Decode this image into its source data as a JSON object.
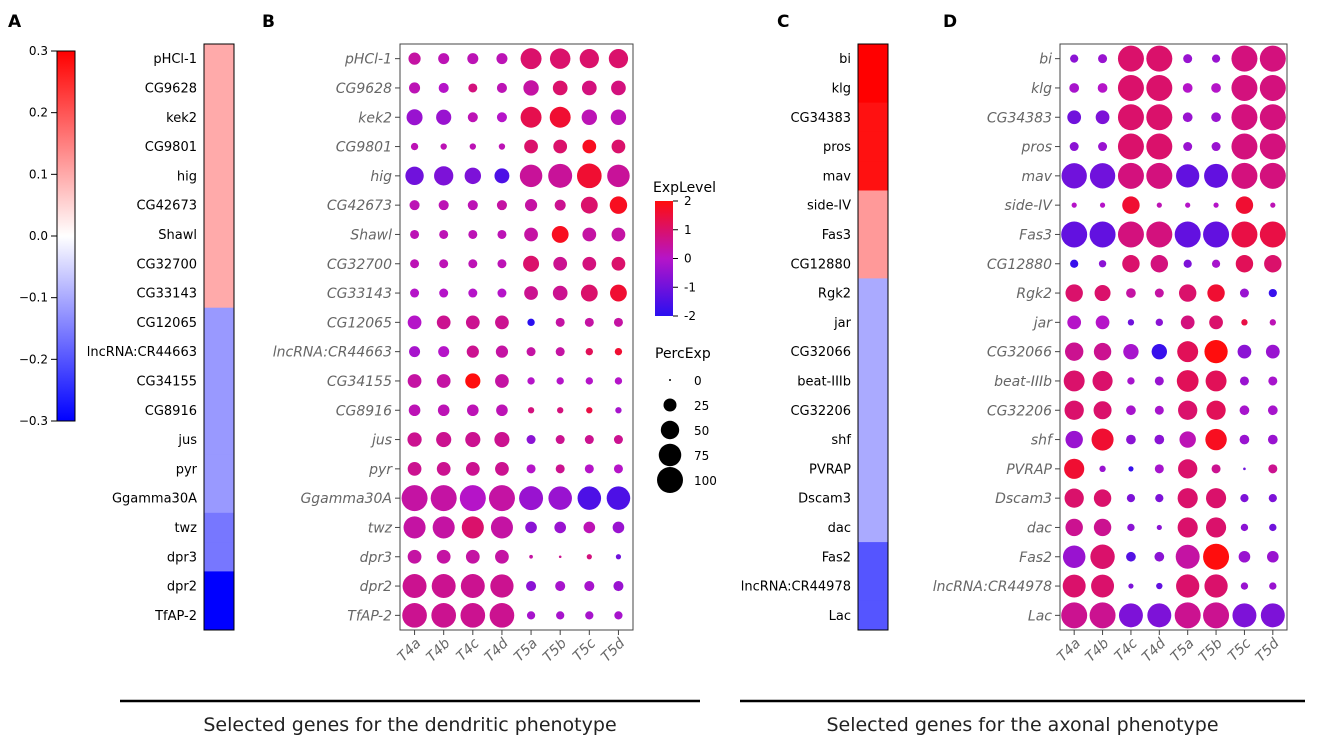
{
  "panel_labels": [
    "A",
    "B",
    "C",
    "D"
  ],
  "colors": {
    "dot_low": "#2a0ff0",
    "dot_mid": "#b514c8",
    "dot_high": "#ff0d0d",
    "axis": "#444444",
    "gene_text": "#666666",
    "black": "#000000"
  },
  "captions": {
    "dendritic": "Selected genes for the dendritic phenotype",
    "axonal": "Selected genes for the axonal phenotype"
  },
  "chart_data": [
    {
      "id": "A",
      "type": "heatmap",
      "title": "",
      "colorbar": {
        "min": -0.3,
        "max": 0.3,
        "ticks": [
          "0.3",
          "0.2",
          "0.1",
          "0.0",
          "−0.1",
          "−0.2",
          "−0.3"
        ],
        "tick_values": [
          0.3,
          0.2,
          0.1,
          0.0,
          -0.1,
          -0.2,
          -0.3
        ],
        "colors": [
          "#0000ff",
          "#ffffff",
          "#ff0000"
        ]
      },
      "rows": [
        "pHCl-1",
        "CG9628",
        "kek2",
        "CG9801",
        "hig",
        "CG42673",
        "Shawl",
        "CG32700",
        "CG33143",
        "CG12065",
        "lncRNA:CR44663",
        "CG34155",
        "CG8916",
        "jus",
        "pyr",
        "Ggamma30A",
        "twz",
        "dpr3",
        "dpr2",
        "TfAP-2"
      ],
      "values": [
        0.1,
        0.1,
        0.1,
        0.1,
        0.1,
        0.1,
        0.1,
        0.1,
        0.1,
        -0.12,
        -0.12,
        -0.12,
        -0.12,
        -0.12,
        -0.12,
        -0.12,
        -0.16,
        -0.16,
        -0.3,
        -0.3
      ]
    },
    {
      "id": "B",
      "type": "scatter",
      "subtype": "dotplot",
      "xlabels": [
        "T4a",
        "T4b",
        "T4c",
        "T4d",
        "T5a",
        "T5b",
        "T5c",
        "T5d"
      ],
      "ylabels": [
        "pHCl-1",
        "CG9628",
        "kek2",
        "CG9801",
        "hig",
        "CG42673",
        "Shawl",
        "CG32700",
        "CG33143",
        "CG12065",
        "lncRNA:CR44663",
        "CG34155",
        "CG8916",
        "jus",
        "pyr",
        "Ggamma30A",
        "twz",
        "dpr3",
        "dpr2",
        "TfAP-2"
      ],
      "perc_exp": [
        [
          22,
          18,
          18,
          18,
          65,
          62,
          55,
          55
        ],
        [
          18,
          15,
          12,
          15,
          35,
          32,
          32,
          32
        ],
        [
          38,
          34,
          15,
          15,
          65,
          65,
          35,
          35
        ],
        [
          8,
          6,
          6,
          6,
          28,
          28,
          28,
          28
        ],
        [
          50,
          55,
          40,
          33,
          75,
          85,
          90,
          75
        ],
        [
          15,
          15,
          15,
          15,
          22,
          18,
          42,
          45
        ],
        [
          12,
          12,
          12,
          12,
          28,
          42,
          28,
          28
        ],
        [
          12,
          12,
          12,
          12,
          38,
          28,
          28,
          28
        ],
        [
          12,
          12,
          12,
          12,
          28,
          32,
          42,
          42
        ],
        [
          28,
          28,
          28,
          28,
          8,
          12,
          12,
          12
        ],
        [
          18,
          18,
          22,
          22,
          12,
          12,
          8,
          8
        ],
        [
          28,
          28,
          34,
          28,
          8,
          8,
          8,
          8
        ],
        [
          20,
          20,
          20,
          20,
          6,
          6,
          6,
          6
        ],
        [
          30,
          34,
          34,
          34,
          12,
          12,
          12,
          12
        ],
        [
          28,
          28,
          28,
          28,
          12,
          12,
          12,
          12
        ],
        [
          100,
          100,
          100,
          100,
          85,
          82,
          82,
          82
        ],
        [
          72,
          72,
          72,
          72,
          20,
          20,
          20,
          20
        ],
        [
          28,
          28,
          28,
          28,
          2,
          1,
          4,
          4
        ],
        [
          85,
          85,
          85,
          80,
          15,
          15,
          15,
          15
        ],
        [
          90,
          90,
          90,
          90,
          10,
          10,
          10,
          10
        ]
      ],
      "exp_level": [
        [
          0.4,
          0.2,
          0.2,
          0.2,
          1.0,
          1.0,
          1.0,
          1.0
        ],
        [
          0.2,
          0.0,
          0.8,
          0.2,
          0.4,
          1.0,
          0.8,
          0.8
        ],
        [
          -0.4,
          -0.4,
          0.2,
          0.0,
          1.3,
          1.6,
          0.2,
          0.2
        ],
        [
          0.2,
          0.2,
          0.2,
          0.2,
          1.0,
          1.0,
          1.8,
          1.0
        ],
        [
          -1.0,
          -0.8,
          -0.8,
          -1.5,
          0.5,
          0.5,
          1.6,
          0.5
        ],
        [
          0.2,
          0.2,
          0.2,
          0.4,
          0.4,
          0.6,
          1.0,
          1.8
        ],
        [
          0.2,
          0.2,
          0.2,
          0.2,
          0.4,
          1.8,
          0.4,
          0.4
        ],
        [
          0.2,
          0.2,
          0.2,
          0.2,
          1.0,
          0.6,
          0.8,
          1.0
        ],
        [
          0.0,
          0.0,
          0.0,
          0.0,
          0.6,
          0.6,
          1.0,
          1.6
        ],
        [
          0.0,
          0.6,
          0.6,
          0.6,
          -2.0,
          0.4,
          0.4,
          0.4
        ],
        [
          -0.2,
          0.0,
          0.6,
          0.4,
          0.4,
          0.4,
          1.2,
          1.6
        ],
        [
          0.4,
          0.4,
          2.0,
          0.4,
          0.0,
          0.0,
          0.0,
          0.0
        ],
        [
          0.2,
          0.2,
          0.2,
          0.2,
          0.8,
          0.8,
          1.4,
          -0.2
        ],
        [
          0.6,
          0.6,
          0.6,
          0.6,
          -0.6,
          0.6,
          0.6,
          0.6
        ],
        [
          0.6,
          0.6,
          0.6,
          0.6,
          0.0,
          0.6,
          0.0,
          0.0
        ],
        [
          0.4,
          0.4,
          0.0,
          0.4,
          -0.4,
          -0.4,
          -1.5,
          -1.5
        ],
        [
          0.4,
          0.4,
          1.0,
          0.4,
          -0.6,
          -0.4,
          0.2,
          -0.4
        ],
        [
          0.4,
          0.4,
          0.4,
          0.4,
          0.4,
          0.6,
          0.8,
          -1.0
        ],
        [
          0.6,
          0.6,
          0.6,
          0.6,
          -0.6,
          -0.2,
          -0.2,
          -0.4
        ],
        [
          0.6,
          0.6,
          0.6,
          0.6,
          -0.2,
          -0.2,
          -0.2,
          -0.2
        ]
      ],
      "legend": {
        "exp_title": "ExpLevel",
        "exp_ticks": [
          "2",
          "1",
          "0",
          "-1",
          "-2"
        ],
        "exp_tick_values": [
          2,
          1,
          0,
          -1,
          -2
        ],
        "perc_title": "PercExp",
        "perc_ticks": [
          "0",
          "25",
          "50",
          "75",
          "100"
        ],
        "perc_tick_values": [
          0,
          25,
          50,
          75,
          100
        ]
      }
    },
    {
      "id": "C",
      "type": "heatmap",
      "rows": [
        "bi",
        "klg",
        "CG34383",
        "pros",
        "mav",
        "side-IV",
        "Fas3",
        "CG12880",
        "Rgk2",
        "jar",
        "CG32066",
        "beat-IIIb",
        "CG32206",
        "shf",
        "PVRAP",
        "Dscam3",
        "dac",
        "Fas2",
        "lncRNA:CR44978",
        "Lac"
      ],
      "values": [
        0.3,
        0.3,
        0.28,
        0.28,
        0.28,
        0.12,
        0.12,
        0.12,
        -0.1,
        -0.1,
        -0.1,
        -0.1,
        -0.1,
        -0.1,
        -0.1,
        -0.1,
        -0.1,
        -0.2,
        -0.2,
        -0.2
      ]
    },
    {
      "id": "D",
      "type": "scatter",
      "subtype": "dotplot",
      "xlabels": [
        "T4a",
        "T4b",
        "T4c",
        "T4d",
        "T5a",
        "T5b",
        "T5c",
        "T5d"
      ],
      "ylabels": [
        "bi",
        "klg",
        "CG34383",
        "pros",
        "mav",
        "side-IV",
        "Fas3",
        "CG12880",
        "Rgk2",
        "jar",
        "CG32066",
        "beat-IIIb",
        "CG32206",
        "shf",
        "PVRAP",
        "Dscam3",
        "dac",
        "Fas2",
        "lncRNA:CR44978",
        "Lac"
      ],
      "perc_exp": [
        [
          10,
          12,
          100,
          100,
          12,
          10,
          100,
          100
        ],
        [
          14,
          14,
          100,
          100,
          14,
          14,
          100,
          100
        ],
        [
          28,
          28,
          100,
          100,
          14,
          14,
          100,
          100
        ],
        [
          12,
          12,
          100,
          100,
          12,
          12,
          100,
          100
        ],
        [
          95,
          95,
          100,
          100,
          80,
          85,
          100,
          100
        ],
        [
          4,
          4,
          45,
          4,
          4,
          4,
          45,
          4
        ],
        [
          100,
          100,
          100,
          100,
          100,
          100,
          100,
          100
        ],
        [
          10,
          8,
          45,
          45,
          10,
          10,
          45,
          45
        ],
        [
          45,
          38,
          14,
          12,
          45,
          45,
          12,
          10
        ],
        [
          28,
          28,
          6,
          8,
          28,
          28,
          6,
          6
        ],
        [
          50,
          45,
          35,
          35,
          65,
          80,
          28,
          28
        ],
        [
          65,
          60,
          8,
          12,
          70,
          65,
          12,
          12
        ],
        [
          55,
          48,
          14,
          12,
          55,
          55,
          14,
          14
        ],
        [
          45,
          72,
          14,
          14,
          40,
          68,
          14,
          14
        ],
        [
          60,
          6,
          4,
          12,
          55,
          12,
          1,
          12
        ],
        [
          55,
          45,
          10,
          10,
          60,
          60,
          10,
          10
        ],
        [
          45,
          45,
          8,
          4,
          60,
          60,
          8,
          8
        ],
        [
          75,
          88,
          14,
          14,
          85,
          100,
          20,
          20
        ],
        [
          78,
          78,
          4,
          6,
          80,
          80,
          8,
          8
        ],
        [
          100,
          100,
          85,
          85,
          100,
          100,
          85,
          85
        ]
      ],
      "exp_level": [
        [
          -0.6,
          -0.4,
          1.0,
          1.0,
          -0.4,
          -0.4,
          0.8,
          0.8
        ],
        [
          -0.2,
          0.0,
          1.0,
          1.0,
          0.0,
          0.0,
          0.8,
          0.8
        ],
        [
          -1.0,
          -0.8,
          1.0,
          1.0,
          -0.4,
          -0.4,
          0.8,
          0.8
        ],
        [
          -0.6,
          -0.4,
          1.0,
          1.0,
          -0.4,
          -0.4,
          0.8,
          0.8
        ],
        [
          -1.0,
          -1.0,
          0.8,
          0.8,
          -1.2,
          -1.2,
          0.8,
          0.8
        ],
        [
          0.0,
          0.0,
          1.6,
          0.2,
          0.0,
          0.0,
          1.6,
          0.2
        ],
        [
          -1.2,
          -1.2,
          0.8,
          0.8,
          -1.2,
          -1.2,
          1.4,
          1.4
        ],
        [
          -1.8,
          -0.6,
          1.0,
          0.8,
          -0.8,
          -0.2,
          1.2,
          1.0
        ],
        [
          1.0,
          1.0,
          0.4,
          0.4,
          1.0,
          1.6,
          -0.4,
          -1.8
        ],
        [
          0.0,
          0.0,
          -1.0,
          -0.6,
          0.8,
          1.0,
          1.4,
          0.2
        ],
        [
          0.6,
          0.6,
          -0.2,
          -1.8,
          1.2,
          2.0,
          -0.6,
          -0.4
        ],
        [
          1.0,
          1.0,
          -0.2,
          -0.4,
          1.2,
          1.2,
          -0.4,
          -0.2
        ],
        [
          1.0,
          1.0,
          -0.2,
          -0.2,
          1.0,
          1.2,
          -0.2,
          -0.2
        ],
        [
          -0.4,
          1.6,
          -0.6,
          -0.6,
          0.2,
          1.8,
          -0.4,
          -0.4
        ],
        [
          1.6,
          -0.4,
          -1.8,
          -0.2,
          1.0,
          0.6,
          -1.0,
          0.6
        ],
        [
          1.0,
          1.0,
          -0.8,
          -0.8,
          1.0,
          1.0,
          -0.8,
          -0.8
        ],
        [
          0.6,
          0.6,
          -0.6,
          -0.6,
          1.0,
          1.0,
          -0.6,
          -1.0
        ],
        [
          -0.4,
          1.0,
          -1.4,
          -0.6,
          0.4,
          2.0,
          -0.4,
          -0.4
        ],
        [
          1.0,
          1.0,
          -0.8,
          -1.2,
          1.0,
          1.0,
          -0.4,
          -0.4
        ],
        [
          0.6,
          0.6,
          -0.8,
          -0.8,
          0.6,
          0.6,
          -0.8,
          -0.8
        ]
      ]
    }
  ]
}
